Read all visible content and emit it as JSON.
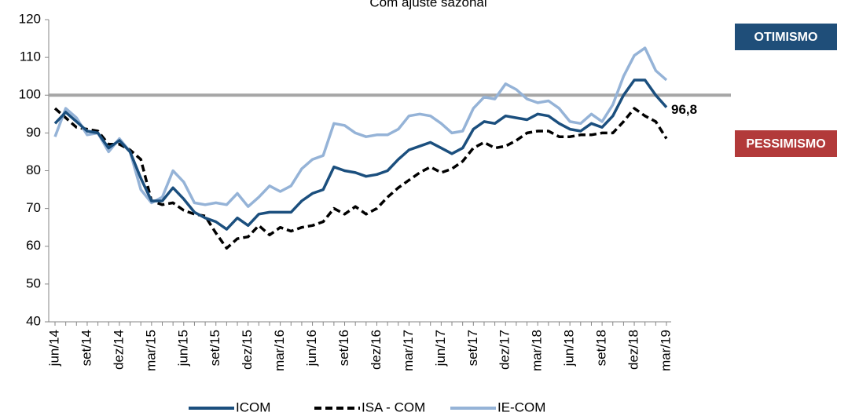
{
  "chart_data": {
    "type": "line",
    "title": "Com ajuste sazonal",
    "categories": [
      "jun/14",
      null,
      null,
      "set/14",
      null,
      null,
      "dez/14",
      null,
      null,
      "mar/15",
      null,
      null,
      "jun/15",
      null,
      null,
      "set/15",
      null,
      null,
      "dez/15",
      null,
      null,
      "mar/16",
      null,
      null,
      "jun/16",
      null,
      null,
      "set/16",
      null,
      null,
      "dez/16",
      null,
      null,
      "mar/17",
      null,
      null,
      "jun/17",
      null,
      null,
      "set/17",
      null,
      null,
      "dez/17",
      null,
      null,
      "mar/18",
      null,
      null,
      "jun/18",
      null,
      null,
      "set/18",
      null,
      null,
      "dez/18",
      null,
      null,
      "mar/19"
    ],
    "series": [
      {
        "name": "ICOM",
        "color": "#1b4f7e",
        "dash": false,
        "values": [
          92.5,
          95.5,
          93,
          90.5,
          90,
          86,
          88,
          85,
          78,
          72,
          72,
          75.5,
          72.5,
          69,
          67.5,
          66.5,
          64.5,
          67.5,
          65.5,
          68.5,
          69,
          69,
          69,
          72,
          74,
          75,
          81,
          80,
          79.5,
          78.5,
          79,
          80,
          83,
          85.5,
          86.5,
          87.5,
          86,
          84.5,
          86,
          91,
          93,
          92.5,
          94.5,
          94,
          93.5,
          95,
          94.5,
          92.5,
          91,
          90.5,
          92.5,
          91.5,
          94.5,
          100,
          104,
          104,
          100,
          96.8
        ],
        "value_labels": [
          null,
          null,
          null,
          null,
          null,
          null,
          null,
          null,
          null,
          null,
          null,
          null,
          null,
          null,
          null,
          null,
          null,
          null,
          null,
          null,
          null,
          null,
          null,
          null,
          null,
          null,
          null,
          null,
          null,
          null,
          null,
          null,
          null,
          null,
          null,
          null,
          null,
          null,
          null,
          null,
          null,
          null,
          null,
          null,
          null,
          null,
          null,
          null,
          null,
          null,
          null,
          null,
          null,
          null,
          null,
          null,
          null,
          "96,8"
        ]
      },
      {
        "name": "ISA - COM",
        "color": "#000000",
        "dash": true,
        "values": [
          96.5,
          94,
          91.5,
          91,
          90.5,
          87,
          87,
          85.5,
          83,
          72,
          71,
          71.5,
          69.5,
          68.5,
          68,
          63.5,
          59.5,
          62,
          62.5,
          65.5,
          63,
          65,
          64,
          65,
          65.5,
          66.5,
          70,
          68.5,
          70.5,
          68.5,
          70,
          73,
          75.5,
          77.5,
          79.5,
          81,
          79.5,
          80.5,
          82.5,
          86,
          87.5,
          86,
          86.5,
          88,
          90,
          90.5,
          90.5,
          89,
          89,
          89.5,
          89.5,
          90,
          90,
          93,
          96.5,
          94.5,
          93,
          88.5
        ]
      },
      {
        "name": "IE-COM",
        "color": "#95b3d7",
        "dash": false,
        "values": [
          89,
          96.5,
          94,
          89.5,
          90,
          85,
          88.5,
          85,
          75,
          71.5,
          73,
          80,
          77,
          71.5,
          71,
          71.5,
          71,
          74,
          70.5,
          73,
          76,
          74.5,
          76,
          80.5,
          83,
          84,
          92.5,
          92,
          90,
          89,
          89.5,
          89.5,
          91,
          94.5,
          95,
          94.5,
          92.5,
          90,
          90.5,
          96.5,
          99.5,
          99,
          103,
          101.5,
          99,
          98,
          98.5,
          96.5,
          93,
          92.5,
          95,
          93,
          97.5,
          105,
          110.5,
          112.5,
          106.5,
          104
        ]
      }
    ],
    "reference_line": {
      "value": 100,
      "color": "#a6a6a6"
    },
    "annotations": [
      {
        "text": "OTIMISMO",
        "color": "#1f4e79"
      },
      {
        "text": "PESSIMISMO",
        "color": "#b23a3a"
      }
    ],
    "ylim": [
      40,
      120
    ],
    "yticks": [
      40,
      50,
      60,
      70,
      80,
      90,
      100,
      110,
      120
    ],
    "grid": false
  }
}
